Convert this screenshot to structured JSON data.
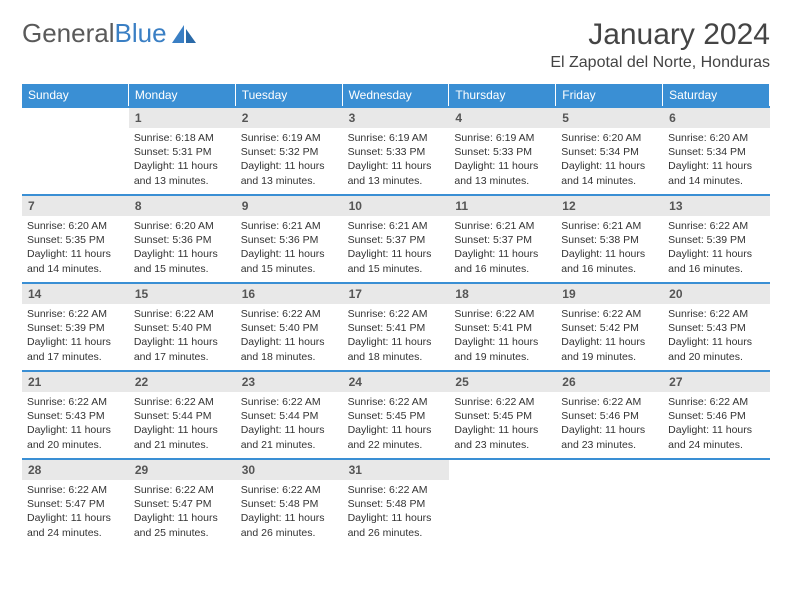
{
  "logo": {
    "text1": "General",
    "text2": "Blue"
  },
  "title": "January 2024",
  "location": "El Zapotal del Norte, Honduras",
  "colors": {
    "header_bg": "#3a8fd4",
    "daynum_bg": "#e8e8e8",
    "border": "#3a8fd4",
    "text": "#333333",
    "logo_gray": "#5a5a5a",
    "logo_blue": "#3a7fc4"
  },
  "day_headers": [
    "Sunday",
    "Monday",
    "Tuesday",
    "Wednesday",
    "Thursday",
    "Friday",
    "Saturday"
  ],
  "start_offset": 1,
  "total_cells": 35,
  "days": [
    {
      "n": 1,
      "sr": "6:18 AM",
      "ss": "5:31 PM",
      "dl": "11 hours and 13 minutes."
    },
    {
      "n": 2,
      "sr": "6:19 AM",
      "ss": "5:32 PM",
      "dl": "11 hours and 13 minutes."
    },
    {
      "n": 3,
      "sr": "6:19 AM",
      "ss": "5:33 PM",
      "dl": "11 hours and 13 minutes."
    },
    {
      "n": 4,
      "sr": "6:19 AM",
      "ss": "5:33 PM",
      "dl": "11 hours and 13 minutes."
    },
    {
      "n": 5,
      "sr": "6:20 AM",
      "ss": "5:34 PM",
      "dl": "11 hours and 14 minutes."
    },
    {
      "n": 6,
      "sr": "6:20 AM",
      "ss": "5:34 PM",
      "dl": "11 hours and 14 minutes."
    },
    {
      "n": 7,
      "sr": "6:20 AM",
      "ss": "5:35 PM",
      "dl": "11 hours and 14 minutes."
    },
    {
      "n": 8,
      "sr": "6:20 AM",
      "ss": "5:36 PM",
      "dl": "11 hours and 15 minutes."
    },
    {
      "n": 9,
      "sr": "6:21 AM",
      "ss": "5:36 PM",
      "dl": "11 hours and 15 minutes."
    },
    {
      "n": 10,
      "sr": "6:21 AM",
      "ss": "5:37 PM",
      "dl": "11 hours and 15 minutes."
    },
    {
      "n": 11,
      "sr": "6:21 AM",
      "ss": "5:37 PM",
      "dl": "11 hours and 16 minutes."
    },
    {
      "n": 12,
      "sr": "6:21 AM",
      "ss": "5:38 PM",
      "dl": "11 hours and 16 minutes."
    },
    {
      "n": 13,
      "sr": "6:22 AM",
      "ss": "5:39 PM",
      "dl": "11 hours and 16 minutes."
    },
    {
      "n": 14,
      "sr": "6:22 AM",
      "ss": "5:39 PM",
      "dl": "11 hours and 17 minutes."
    },
    {
      "n": 15,
      "sr": "6:22 AM",
      "ss": "5:40 PM",
      "dl": "11 hours and 17 minutes."
    },
    {
      "n": 16,
      "sr": "6:22 AM",
      "ss": "5:40 PM",
      "dl": "11 hours and 18 minutes."
    },
    {
      "n": 17,
      "sr": "6:22 AM",
      "ss": "5:41 PM",
      "dl": "11 hours and 18 minutes."
    },
    {
      "n": 18,
      "sr": "6:22 AM",
      "ss": "5:41 PM",
      "dl": "11 hours and 19 minutes."
    },
    {
      "n": 19,
      "sr": "6:22 AM",
      "ss": "5:42 PM",
      "dl": "11 hours and 19 minutes."
    },
    {
      "n": 20,
      "sr": "6:22 AM",
      "ss": "5:43 PM",
      "dl": "11 hours and 20 minutes."
    },
    {
      "n": 21,
      "sr": "6:22 AM",
      "ss": "5:43 PM",
      "dl": "11 hours and 20 minutes."
    },
    {
      "n": 22,
      "sr": "6:22 AM",
      "ss": "5:44 PM",
      "dl": "11 hours and 21 minutes."
    },
    {
      "n": 23,
      "sr": "6:22 AM",
      "ss": "5:44 PM",
      "dl": "11 hours and 21 minutes."
    },
    {
      "n": 24,
      "sr": "6:22 AM",
      "ss": "5:45 PM",
      "dl": "11 hours and 22 minutes."
    },
    {
      "n": 25,
      "sr": "6:22 AM",
      "ss": "5:45 PM",
      "dl": "11 hours and 23 minutes."
    },
    {
      "n": 26,
      "sr": "6:22 AM",
      "ss": "5:46 PM",
      "dl": "11 hours and 23 minutes."
    },
    {
      "n": 27,
      "sr": "6:22 AM",
      "ss": "5:46 PM",
      "dl": "11 hours and 24 minutes."
    },
    {
      "n": 28,
      "sr": "6:22 AM",
      "ss": "5:47 PM",
      "dl": "11 hours and 24 minutes."
    },
    {
      "n": 29,
      "sr": "6:22 AM",
      "ss": "5:47 PM",
      "dl": "11 hours and 25 minutes."
    },
    {
      "n": 30,
      "sr": "6:22 AM",
      "ss": "5:48 PM",
      "dl": "11 hours and 26 minutes."
    },
    {
      "n": 31,
      "sr": "6:22 AM",
      "ss": "5:48 PM",
      "dl": "11 hours and 26 minutes."
    }
  ],
  "labels": {
    "sunrise": "Sunrise:",
    "sunset": "Sunset:",
    "daylight": "Daylight:"
  }
}
